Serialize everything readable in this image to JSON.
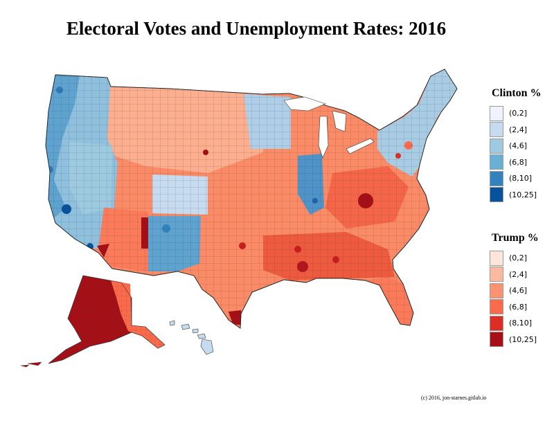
{
  "title": "Electoral Votes and Unemployment Rates: 2016",
  "credit": "(c) 2016,  jon-starnes.gitlab.io",
  "legends": {
    "clinton": {
      "title": "Clinton %",
      "items": [
        {
          "label": "(0,2]",
          "color": "#eff3ff"
        },
        {
          "label": "(2,4]",
          "color": "#c6dbef"
        },
        {
          "label": "(4,6]",
          "color": "#9ecae1"
        },
        {
          "label": "(6,8]",
          "color": "#6baed6"
        },
        {
          "label": "(8,10]",
          "color": "#3182bd"
        },
        {
          "label": "(10,25]",
          "color": "#08519c"
        }
      ]
    },
    "trump": {
      "title": "Trump %",
      "items": [
        {
          "label": "(0,2]",
          "color": "#fee5d9"
        },
        {
          "label": "(2,4]",
          "color": "#fcbba1"
        },
        {
          "label": "(4,6]",
          "color": "#fc9272"
        },
        {
          "label": "(6,8]",
          "color": "#fb6a4a"
        },
        {
          "label": "(8,10]",
          "color": "#de2d26"
        },
        {
          "label": "(10,25]",
          "color": "#a50f15"
        }
      ]
    }
  }
}
